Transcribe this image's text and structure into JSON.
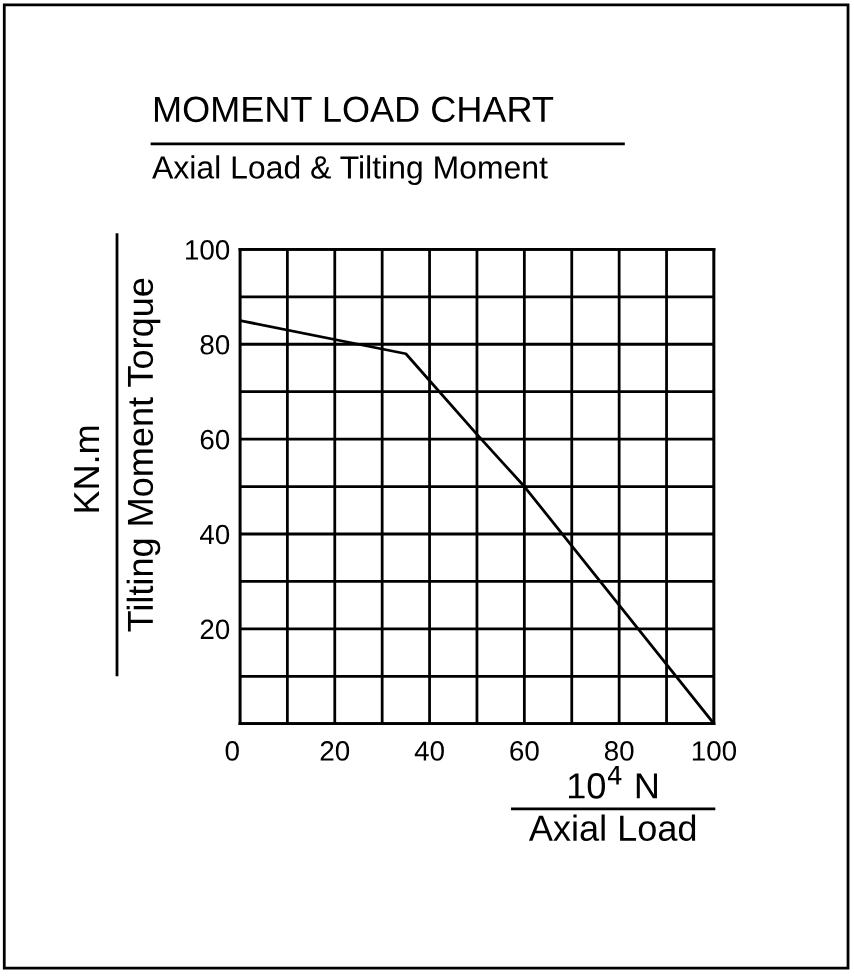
{
  "chart_data": {
    "type": "line",
    "title": "MOMENT LOAD CHART",
    "subtitle": "Axial Load & Tilting Moment",
    "xlabel": "10$^{4}$ N\nAxial Load",
    "ylabel": "KN.m\nTilting Moment Torque",
    "x": [
      0,
      35,
      50,
      60,
      80,
      100
    ],
    "series": [
      {
        "color": "#000000",
        "values": [
          85,
          78,
          61,
          50,
          25,
          0
        ]
      }
    ],
    "xlim": [
      0,
      100
    ],
    "ylim": [
      0,
      100
    ],
    "xticks": [
      0,
      {
        "value": 10,
        "label": null
      },
      20,
      {
        "value": 30,
        "label": null
      },
      40,
      {
        "value": 50,
        "label": null
      },
      60,
      {
        "value": 70,
        "label": null
      },
      80,
      {
        "value": 90,
        "label": null
      },
      100
    ],
    "yticks": [
      {
        "value": 0,
        "label": null
      },
      {
        "value": 10,
        "label": null
      },
      20,
      {
        "value": 30,
        "label": null
      },
      40,
      {
        "value": 50,
        "label": null
      },
      60,
      {
        "value": 70,
        "label": null
      },
      80,
      {
        "value": 90,
        "label": null
      },
      100
    ],
    "grid": true,
    "marker": "none",
    "line_style": "solid",
    "legend": false
  }
}
